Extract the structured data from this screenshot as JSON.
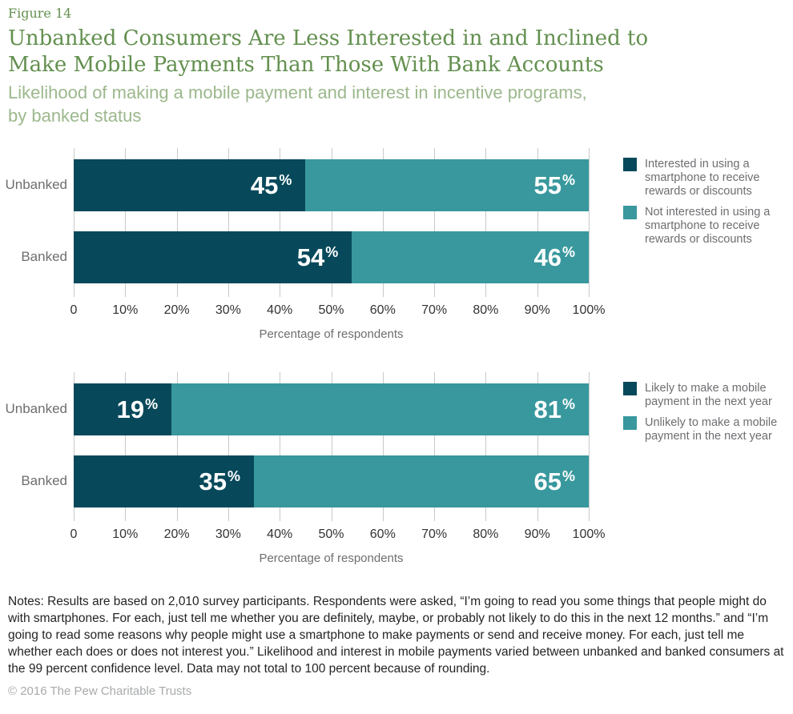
{
  "header": {
    "figure_label": "Figure 14",
    "title_lines": [
      "Unbanked Consumers Are Less Interested in and Inclined to",
      "Make Mobile Payments Than Those With Bank Accounts"
    ],
    "subtitle_lines": [
      "Likelihood of making a mobile payment and interest in incentive programs,",
      "by banked status"
    ]
  },
  "chart_data": [
    {
      "type": "bar",
      "orientation": "horizontal",
      "stacked": true,
      "categories": [
        "Unbanked",
        "Banked"
      ],
      "series": [
        {
          "name": "Interested in using a smartphone to receive rewards or discounts",
          "color": "#07495A",
          "values": [
            45,
            54
          ]
        },
        {
          "name": "Not interested in using a smartphone to receive rewards or discounts",
          "color": "#38989D",
          "values": [
            55,
            46
          ]
        }
      ],
      "value_suffix": "%",
      "xlabel": "Percentage of respondents",
      "xlim": [
        0,
        100
      ],
      "xticks": [
        "0",
        "10%",
        "20%",
        "30%",
        "40%",
        "50%",
        "60%",
        "70%",
        "80%",
        "90%",
        "100%"
      ],
      "grid": true,
      "legend_position": "right"
    },
    {
      "type": "bar",
      "orientation": "horizontal",
      "stacked": true,
      "categories": [
        "Unbanked",
        "Banked"
      ],
      "series": [
        {
          "name": "Likely to make a mobile payment in the next year",
          "color": "#07495A",
          "values": [
            19,
            35
          ]
        },
        {
          "name": "Unlikely to make a mobile payment in the next year",
          "color": "#38989D",
          "values": [
            81,
            65
          ]
        }
      ],
      "value_suffix": "%",
      "xlabel": "Percentage of respondents",
      "xlim": [
        0,
        100
      ],
      "xticks": [
        "0",
        "10%",
        "20%",
        "30%",
        "40%",
        "50%",
        "60%",
        "70%",
        "80%",
        "90%",
        "100%"
      ],
      "grid": true,
      "legend_position": "right"
    }
  ],
  "notes": "Notes: Results are based on 2,010 survey participants. Respondents were asked, “I’m going to read you some things that people might do with smartphones. For each, just tell me whether you are definitely, maybe, or probably not likely to do this in the next 12 months.” and “I’m going to read some reasons why people might use a smartphone to make payments or send and receive money. For each, just tell me whether each does or does not interest you.” Likelihood and interest in mobile payments varied between unbanked and banked consumers at the 99 percent confidence level. Data may not total to 100 percent because of rounding.",
  "copyright": "© 2016 The Pew Charitable Trusts",
  "colors": {
    "dark_teal": "#07495A",
    "light_teal": "#38989D",
    "title_green": "#63904F",
    "subtitle_green": "#9CB88C",
    "label_gray": "#6D6E71",
    "tick_text": "#323334",
    "gridline": "#C7C9CA"
  }
}
